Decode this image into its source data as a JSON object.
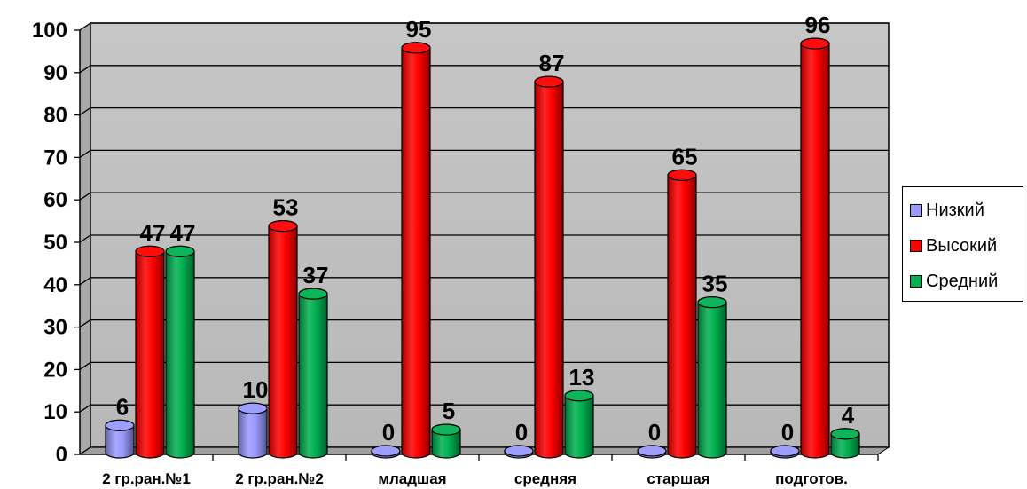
{
  "chart_data": {
    "type": "bar",
    "categories": [
      "2 гр.ран.№1",
      "2 гр.ран.№2",
      "младшая",
      "средняя",
      "старшая",
      "подготов."
    ],
    "series": [
      {
        "name": "Низкий",
        "values": [
          6,
          10,
          0,
          0,
          0,
          0
        ],
        "color": "#9999ff"
      },
      {
        "name": "Высокий",
        "values": [
          47,
          53,
          95,
          87,
          65,
          96
        ],
        "color": "#ff0000"
      },
      {
        "name": "Средний",
        "values": [
          47,
          37,
          5,
          13,
          35,
          4
        ],
        "color": "#00b050"
      }
    ],
    "yticks": [
      "0",
      "10",
      "20",
      "30",
      "40",
      "50",
      "60",
      "70",
      "80",
      "90",
      "100"
    ],
    "ylim": [
      0,
      100
    ],
    "grid": true,
    "legend_position": "right",
    "wall_color": "#c0c0c0"
  }
}
